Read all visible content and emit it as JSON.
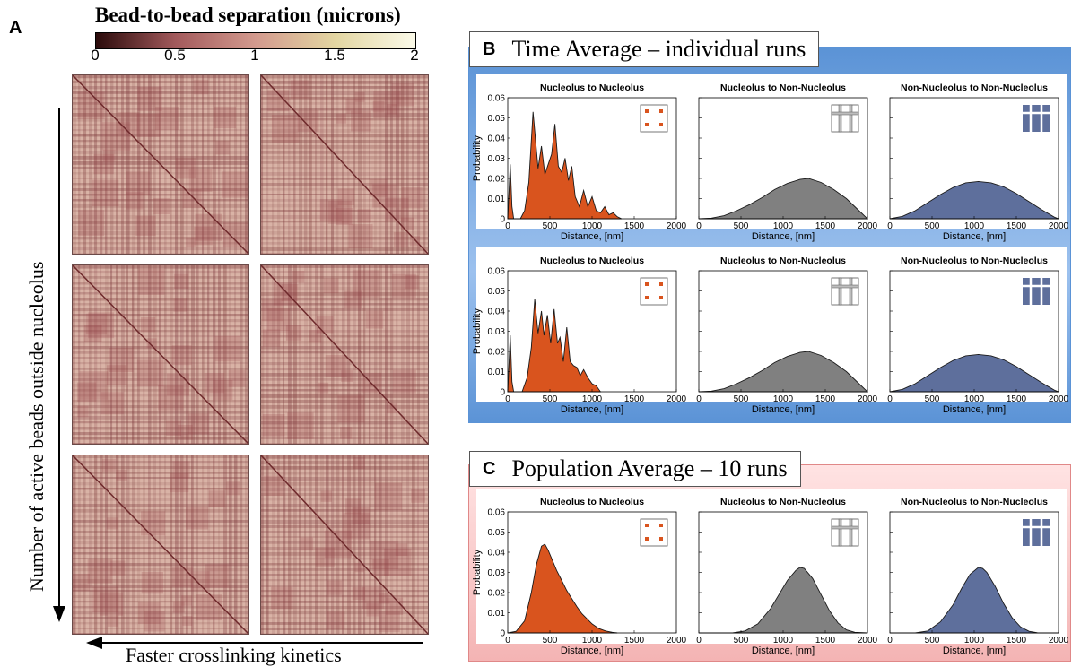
{
  "panel_a": {
    "letter": "A",
    "colorbar_title": "Bead-to-bead separation (microns)",
    "colorbar_ticks": [
      "0",
      "0.5",
      "1",
      "1.5",
      "2"
    ],
    "colorbar_colors": [
      "#2b0b0b",
      "#a35a5c",
      "#d39a8e",
      "#e3d6a2",
      "#fbfae9"
    ],
    "y_label": "Number of active beads outside nucleolus",
    "x_label": "Faster crosslinking kinetics"
  },
  "panel_b": {
    "letter": "B",
    "title": "Time Average – individual runs",
    "bg_color": "#5b93d6"
  },
  "panel_c": {
    "letter": "C",
    "title": "Population Average – 10 runs",
    "bg_color": "#f4b4b4"
  },
  "chart_data": [
    {
      "type": "area",
      "title": "Nucleolus to Nucleolus",
      "xlabel": "Distance, [nm]",
      "ylabel": "Probability",
      "xlim": [
        0,
        2000
      ],
      "ylim": [
        0,
        0.06
      ],
      "xticks": [
        "0",
        "500",
        "1000",
        "1500",
        "2000"
      ],
      "yticks": [
        "0",
        "0.01",
        "0.02",
        "0.03",
        "0.04",
        "0.05",
        "0.06"
      ],
      "color": "#d9541e",
      "icon": "dots-icon",
      "x": [
        0,
        30,
        50,
        70,
        110,
        150,
        200,
        250,
        300,
        330,
        360,
        400,
        440,
        480,
        520,
        560,
        600,
        640,
        680,
        720,
        760,
        800,
        850,
        900,
        950,
        1000,
        1050,
        1100,
        1150,
        1200,
        1250,
        1300,
        1350
      ],
      "y": [
        0,
        0.027,
        0.006,
        0,
        0,
        0,
        0.004,
        0.018,
        0.053,
        0.039,
        0.025,
        0.036,
        0.022,
        0.027,
        0.032,
        0.047,
        0.026,
        0.023,
        0.03,
        0.019,
        0.026,
        0.011,
        0.006,
        0.014,
        0.006,
        0.011,
        0.004,
        0.003,
        0.006,
        0.002,
        0.003,
        0.001,
        0
      ]
    },
    {
      "type": "area",
      "title": "Nucleolus to Non-Nucleolus",
      "xlabel": "Distance, [nm]",
      "ylabel": "",
      "xlim": [
        0,
        2000
      ],
      "ylim": [
        0,
        0.06
      ],
      "xticks": [
        "0",
        "500",
        "1000",
        "1500",
        "2000"
      ],
      "yticks": [],
      "color": "#808080",
      "icon": "grid-outline-icon",
      "x": [
        0,
        150,
        300,
        450,
        600,
        750,
        900,
        1050,
        1200,
        1300,
        1450,
        1600,
        1750,
        1900,
        2000
      ],
      "y": [
        0,
        0.0003,
        0.0015,
        0.004,
        0.007,
        0.0105,
        0.0145,
        0.0175,
        0.0195,
        0.02,
        0.018,
        0.0145,
        0.01,
        0.004,
        0
      ]
    },
    {
      "type": "area",
      "title": "Non-Nucleolus to Non-Nucleolus",
      "xlabel": "Distance, [nm]",
      "ylabel": "",
      "xlim": [
        0,
        2000
      ],
      "ylim": [
        0,
        0.06
      ],
      "xticks": [
        "0",
        "500",
        "1000",
        "1500",
        "2000"
      ],
      "yticks": [],
      "color": "#5e6f9c",
      "icon": "grid-filled-icon",
      "x": [
        0,
        150,
        300,
        450,
        600,
        750,
        900,
        1050,
        1200,
        1350,
        1500,
        1650,
        1800,
        1950,
        2000
      ],
      "y": [
        0,
        0.0012,
        0.004,
        0.008,
        0.012,
        0.0155,
        0.0178,
        0.0185,
        0.0178,
        0.0158,
        0.0125,
        0.0085,
        0.0045,
        0.0008,
        0
      ]
    },
    {
      "type": "area",
      "title": "Nucleolus to Nucleolus",
      "xlabel": "Distance, [nm]",
      "ylabel": "Probability",
      "xlim": [
        0,
        2000
      ],
      "ylim": [
        0,
        0.06
      ],
      "xticks": [
        "0",
        "500",
        "1000",
        "1500",
        "2000"
      ],
      "yticks": [
        "0",
        "0.01",
        "0.02",
        "0.03",
        "0.04",
        "0.05",
        "0.06"
      ],
      "color": "#d9541e",
      "icon": "dots-icon",
      "x": [
        0,
        30,
        50,
        70,
        120,
        170,
        230,
        280,
        320,
        360,
        400,
        430,
        470,
        510,
        550,
        590,
        620,
        660,
        700,
        740,
        780,
        820,
        860,
        900,
        950,
        1000,
        1050,
        1100
      ],
      "y": [
        0,
        0.028,
        0.005,
        0,
        0,
        0,
        0.007,
        0.022,
        0.046,
        0.029,
        0.04,
        0.028,
        0.038,
        0.024,
        0.041,
        0.024,
        0.027,
        0.015,
        0.032,
        0.015,
        0.013,
        0.012,
        0.008,
        0.011,
        0.007,
        0.004,
        0.003,
        0
      ]
    },
    {
      "type": "area",
      "title": "Nucleolus to Non-Nucleolus",
      "xlabel": "Distance, [nm]",
      "ylabel": "",
      "xlim": [
        0,
        2000
      ],
      "ylim": [
        0,
        0.06
      ],
      "xticks": [
        "0",
        "500",
        "1000",
        "1500",
        "2000"
      ],
      "yticks": [],
      "color": "#808080",
      "icon": "grid-outline-icon",
      "x": [
        0,
        150,
        300,
        450,
        600,
        750,
        900,
        1050,
        1200,
        1300,
        1450,
        1600,
        1750,
        1900,
        2000
      ],
      "y": [
        0,
        0.0003,
        0.0015,
        0.004,
        0.007,
        0.0105,
        0.0145,
        0.0175,
        0.0195,
        0.02,
        0.018,
        0.0145,
        0.01,
        0.004,
        0
      ]
    },
    {
      "type": "area",
      "title": "Non-Nucleolus to Non-Nucleolus",
      "xlabel": "Distance, [nm]",
      "ylabel": "",
      "xlim": [
        0,
        2000
      ],
      "ylim": [
        0,
        0.06
      ],
      "xticks": [
        "0",
        "500",
        "1000",
        "1500",
        "2000"
      ],
      "yticks": [],
      "color": "#5e6f9c",
      "icon": "grid-filled-icon",
      "x": [
        0,
        150,
        300,
        450,
        600,
        750,
        900,
        1050,
        1200,
        1350,
        1500,
        1650,
        1800,
        1950,
        2000
      ],
      "y": [
        0,
        0.0012,
        0.004,
        0.008,
        0.012,
        0.0155,
        0.0178,
        0.0185,
        0.0178,
        0.0158,
        0.0125,
        0.0085,
        0.0045,
        0.0008,
        0
      ]
    },
    {
      "type": "area",
      "title": "Nucleolus to Nucleolus",
      "xlabel": "Distance, [nm]",
      "ylabel": "Probability",
      "xlim": [
        0,
        2000
      ],
      "ylim": [
        0,
        0.06
      ],
      "xticks": [
        "0",
        "500",
        "1000",
        "1500",
        "2000"
      ],
      "yticks": [
        "0",
        "0.01",
        "0.02",
        "0.03",
        "0.04",
        "0.05",
        "0.06"
      ],
      "color": "#d9541e",
      "icon": "dots-icon",
      "x": [
        0,
        100,
        200,
        280,
        340,
        400,
        440,
        480,
        530,
        580,
        640,
        700,
        760,
        820,
        880,
        940,
        1000,
        1080,
        1160,
        1240,
        1300
      ],
      "y": [
        0,
        0.0008,
        0.006,
        0.02,
        0.034,
        0.043,
        0.044,
        0.041,
        0.036,
        0.031,
        0.026,
        0.021,
        0.017,
        0.013,
        0.0095,
        0.007,
        0.0045,
        0.0022,
        0.001,
        0.0003,
        0
      ]
    },
    {
      "type": "area",
      "title": "Nucleolus to Non-Nucleolus",
      "xlabel": "Distance, [nm]",
      "ylabel": "",
      "xlim": [
        0,
        2000
      ],
      "ylim": [
        0,
        0.06
      ],
      "xticks": [
        "0",
        "500",
        "1000",
        "1500",
        "2000"
      ],
      "yticks": [],
      "color": "#808080",
      "icon": "grid-outline-icon",
      "x": [
        0,
        400,
        550,
        700,
        850,
        950,
        1050,
        1150,
        1200,
        1250,
        1350,
        1450,
        1550,
        1650,
        1750,
        1850,
        2000
      ],
      "y": [
        0,
        0,
        0.001,
        0.0045,
        0.012,
        0.019,
        0.026,
        0.031,
        0.0325,
        0.032,
        0.027,
        0.019,
        0.011,
        0.005,
        0.0015,
        0.0003,
        0
      ]
    },
    {
      "type": "area",
      "title": "Non-Nucleolus to Non-Nucleolus",
      "xlabel": "Distance, [nm]",
      "ylabel": "",
      "xlim": [
        0,
        2000
      ],
      "ylim": [
        0,
        0.06
      ],
      "xticks": [
        "0",
        "500",
        "1000",
        "1500",
        "2000"
      ],
      "yticks": [],
      "color": "#5e6f9c",
      "icon": "grid-filled-icon",
      "x": [
        0,
        300,
        450,
        600,
        750,
        850,
        950,
        1050,
        1100,
        1150,
        1250,
        1350,
        1450,
        1550,
        1650,
        1750,
        2000
      ],
      "y": [
        0,
        0,
        0.001,
        0.0055,
        0.014,
        0.022,
        0.029,
        0.0325,
        0.032,
        0.03,
        0.023,
        0.0145,
        0.0075,
        0.003,
        0.0008,
        0.0001,
        0
      ]
    }
  ]
}
